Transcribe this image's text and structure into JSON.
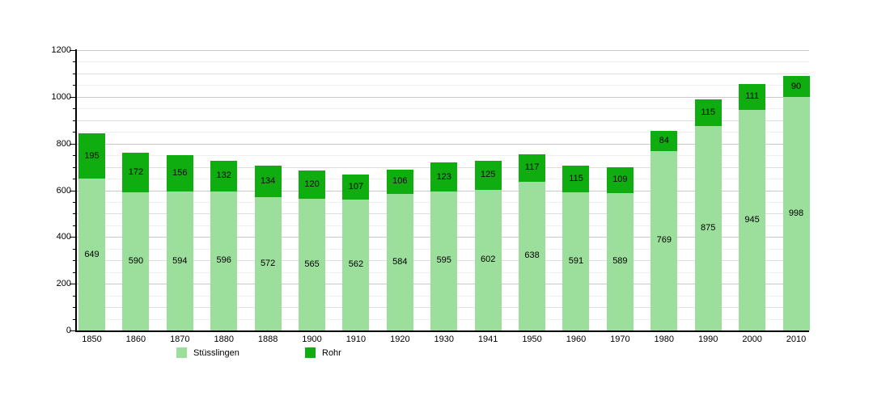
{
  "chart_data": {
    "type": "bar",
    "stacked": true,
    "title": "",
    "xlabel": "",
    "ylabel": "",
    "categories": [
      "1850",
      "1860",
      "1870",
      "1880",
      "1888",
      "1900",
      "1910",
      "1920",
      "1930",
      "1941",
      "1950",
      "1960",
      "1970",
      "1980",
      "1990",
      "2000",
      "2010"
    ],
    "series": [
      {
        "name": "Stüsslingen",
        "color": "#9cde9c",
        "values": [
          649,
          590,
          594,
          596,
          572,
          565,
          562,
          584,
          595,
          602,
          638,
          591,
          589,
          769,
          875,
          945,
          998
        ]
      },
      {
        "name": "Rohr",
        "color": "#0fad0f",
        "values": [
          195,
          172,
          156,
          132,
          134,
          120,
          107,
          106,
          123,
          125,
          117,
          115,
          109,
          84,
          115,
          111,
          90
        ]
      }
    ],
    "ylim": [
      0,
      1200
    ],
    "ytick_major": 200,
    "ytick_minor": 50,
    "ytick_labels": [
      "0",
      "200",
      "400",
      "600",
      "800",
      "1000",
      "1200"
    ],
    "grid": true,
    "bar_value_labels": true,
    "legend_position": "bottom"
  },
  "colors": {
    "background": "#ffffff",
    "axis": "#000000",
    "grid_major": "#c9c9c9",
    "grid_mid": "#dedede",
    "grid_minor": "#efefef",
    "series_stuesslingen": "#9cde9c",
    "series_rohr": "#0fad0f",
    "label_text": "#000000"
  }
}
